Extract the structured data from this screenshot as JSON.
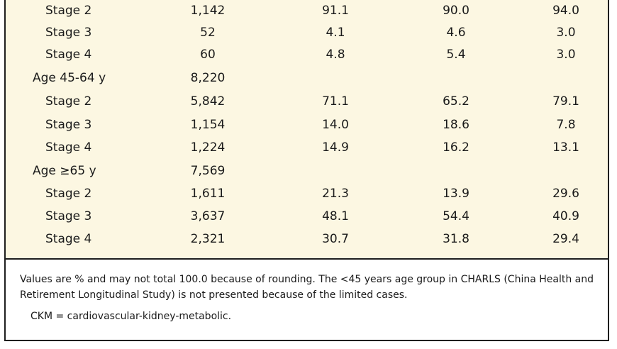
{
  "table": {
    "rows": [
      {
        "label": "Stage 2",
        "indent": true,
        "n": "1,142",
        "p1": "91.1",
        "p2": "90.0",
        "p3": "94.0"
      },
      {
        "label": "Stage 3",
        "indent": true,
        "n": "52",
        "p1": "4.1",
        "p2": "4.6",
        "p3": "3.0"
      },
      {
        "label": "Stage 4",
        "indent": true,
        "n": "60",
        "p1": "4.8",
        "p2": "5.4",
        "p3": "3.0"
      },
      {
        "label": "Age 45-64 y",
        "indent": false,
        "n": "8,220",
        "p1": "",
        "p2": "",
        "p3": ""
      },
      {
        "label": "Stage 2",
        "indent": true,
        "n": "5,842",
        "p1": "71.1",
        "p2": "65.2",
        "p3": "79.1"
      },
      {
        "label": "Stage 3",
        "indent": true,
        "n": "1,154",
        "p1": "14.0",
        "p2": "18.6",
        "p3": "7.8"
      },
      {
        "label": "Stage 4",
        "indent": true,
        "n": "1,224",
        "p1": "14.9",
        "p2": "16.2",
        "p3": "13.1"
      },
      {
        "label": "Age ≥65 y",
        "indent": false,
        "n": "7,569",
        "p1": "",
        "p2": "",
        "p3": ""
      },
      {
        "label": "Stage 2",
        "indent": true,
        "n": "1,611",
        "p1": "21.3",
        "p2": "13.9",
        "p3": "29.6"
      },
      {
        "label": "Stage 3",
        "indent": true,
        "n": "3,637",
        "p1": "48.1",
        "p2": "54.4",
        "p3": "40.9"
      },
      {
        "label": "Stage 4",
        "indent": true,
        "n": "2,321",
        "p1": "30.7",
        "p2": "31.8",
        "p3": "29.4"
      }
    ]
  },
  "footnote": {
    "main": "Values are % and may not total 100.0 because of rounding. The <45 years age group in CHARLS (China Health and Retirement Longitudinal Study) is not presented because of the limited cases.",
    "abbreviation": "CKM = cardiovascular-kidney-metabolic."
  }
}
